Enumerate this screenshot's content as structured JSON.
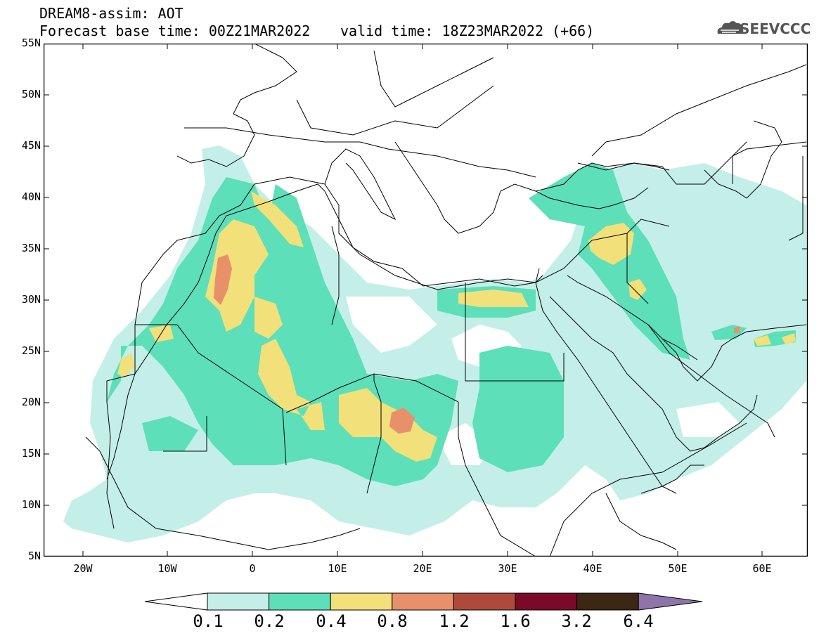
{
  "title": {
    "line1": "DREAM8-assim: AOT",
    "line2": "Forecast base time: 00Z21MAR2022",
    "line3": "valid time: 18Z23MAR2022 (+66)"
  },
  "logo": {
    "text": "SEEVCCC",
    "icon": "cloud-logo-icon"
  },
  "map": {
    "lon_range": [
      -25,
      65
    ],
    "lat_range": [
      5,
      55
    ],
    "lat_labels": [
      "55N",
      "50N",
      "45N",
      "40N",
      "35N",
      "30N",
      "25N",
      "20N",
      "15N",
      "10N",
      "5N"
    ],
    "lon_labels": [
      "20W",
      "10W",
      "0",
      "10E",
      "20E",
      "30E",
      "40E",
      "50E",
      "60E"
    ],
    "variable": "Aerosol optical thickness"
  },
  "colorbar": {
    "labels": [
      "0.1",
      "0.2",
      "0.4",
      "0.8",
      "1.2",
      "1.6",
      "3.2",
      "6.4"
    ],
    "colors": [
      "#c4efe8",
      "#5ddfb9",
      "#f2e07a",
      "#e8906a",
      "#ae4a3c",
      "#7a0a28",
      "#3c2614",
      "#8e74a8"
    ],
    "below_color": "#ffffff"
  }
}
